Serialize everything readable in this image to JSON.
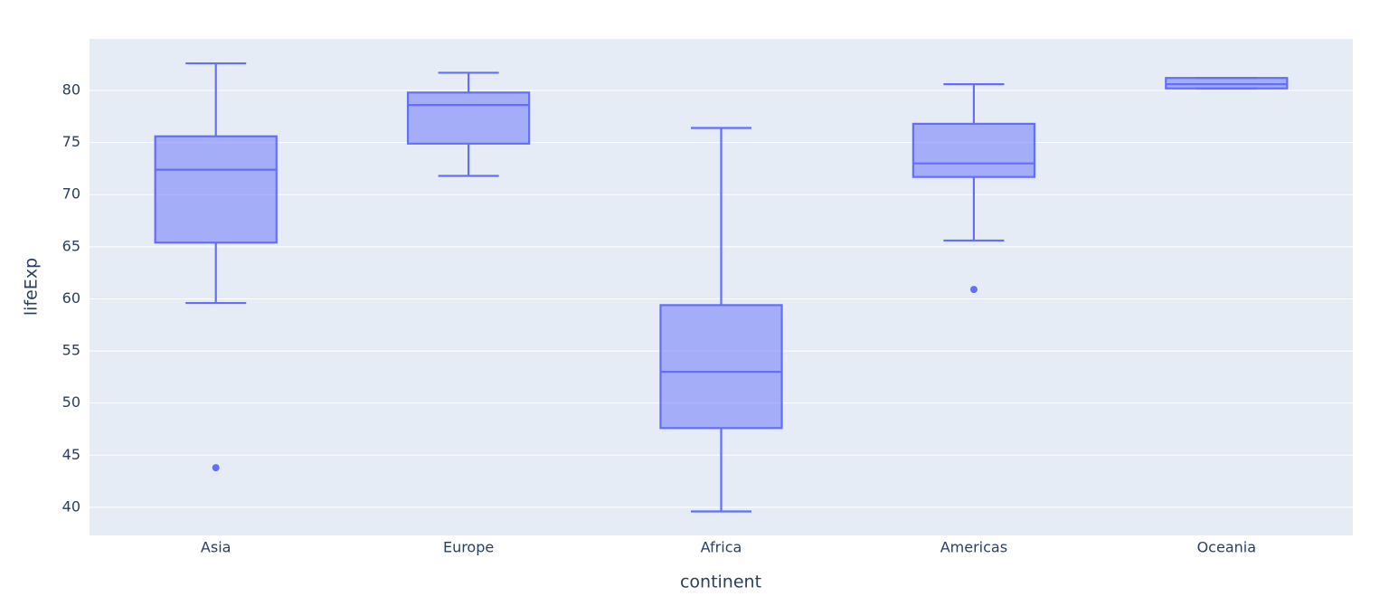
{
  "chart_data": {
    "type": "box",
    "x_label": "continent",
    "y_label": "lifeExp",
    "categories": [
      "Asia",
      "Europe",
      "Africa",
      "Americas",
      "Oceania"
    ],
    "color": "#636efa",
    "boxes": [
      {
        "min": 59.6,
        "q1": 65.4,
        "median": 72.4,
        "q3": 75.6,
        "max": 82.6,
        "outliers": [
          43.8
        ]
      },
      {
        "min": 71.8,
        "q1": 74.9,
        "median": 78.6,
        "q3": 79.8,
        "max": 81.7,
        "outliers": []
      },
      {
        "min": 39.6,
        "q1": 47.6,
        "median": 53.0,
        "q3": 59.4,
        "max": 76.4,
        "outliers": []
      },
      {
        "min": 65.6,
        "q1": 71.7,
        "median": 73.0,
        "q3": 76.8,
        "max": 80.6,
        "outliers": [
          60.9
        ]
      },
      {
        "min": 80.2,
        "q1": 80.2,
        "median": 80.6,
        "q3": 81.2,
        "max": 81.2,
        "outliers": []
      }
    ],
    "ylim": [
      37.3,
      84.95
    ],
    "yticks": [
      40,
      45,
      50,
      55,
      60,
      65,
      70,
      75,
      80
    ],
    "grid": true
  }
}
